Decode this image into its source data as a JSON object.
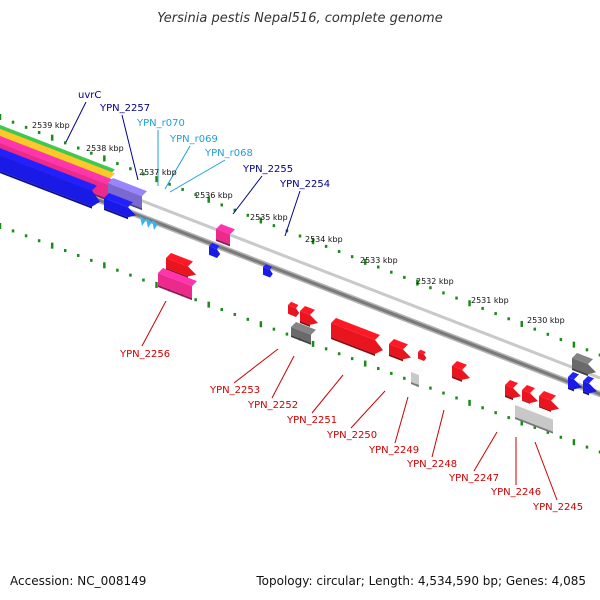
{
  "title": "Yersinia pestis Nepal516, complete genome",
  "footer": {
    "accession": "Accession: NC_008149",
    "topology": "Topology: circular; Length: 4,534,590 bp; Genes: 4,085"
  },
  "colors": {
    "forward_label": "#00008b",
    "rna_label": "#1e9fd6",
    "reverse_label": "#cc0000",
    "backbone": "#8a8a8a",
    "tick": "#1a8a1a",
    "cds_red": "#e8141e",
    "cds_blue": "#1a1ae6",
    "pink": "#ec2a8c",
    "violet": "#7a6ad0",
    "gray": "#6a6a6a",
    "light_gray": "#c8c8c8",
    "cyan": "#35b6ec"
  },
  "kbp_labels": [
    "2539 kbp",
    "2538 kbp",
    "2537 kbp",
    "2536 kbp",
    "2535 kbp",
    "2534 kbp",
    "2533 kbp",
    "2532 kbp",
    "2531 kbp",
    "2530 kbp"
  ],
  "forward_labels": [
    "uvrC",
    "YPN_2257",
    "YPN_r070",
    "YPN_r069",
    "YPN_r068",
    "YPN_2255",
    "YPN_2254"
  ],
  "reverse_labels": [
    "YPN_2256",
    "YPN_2253",
    "YPN_2252",
    "YPN_2251",
    "YPN_2250",
    "YPN_2249",
    "YPN_2248",
    "YPN_2247",
    "YPN_2246",
    "YPN_2245"
  ]
}
